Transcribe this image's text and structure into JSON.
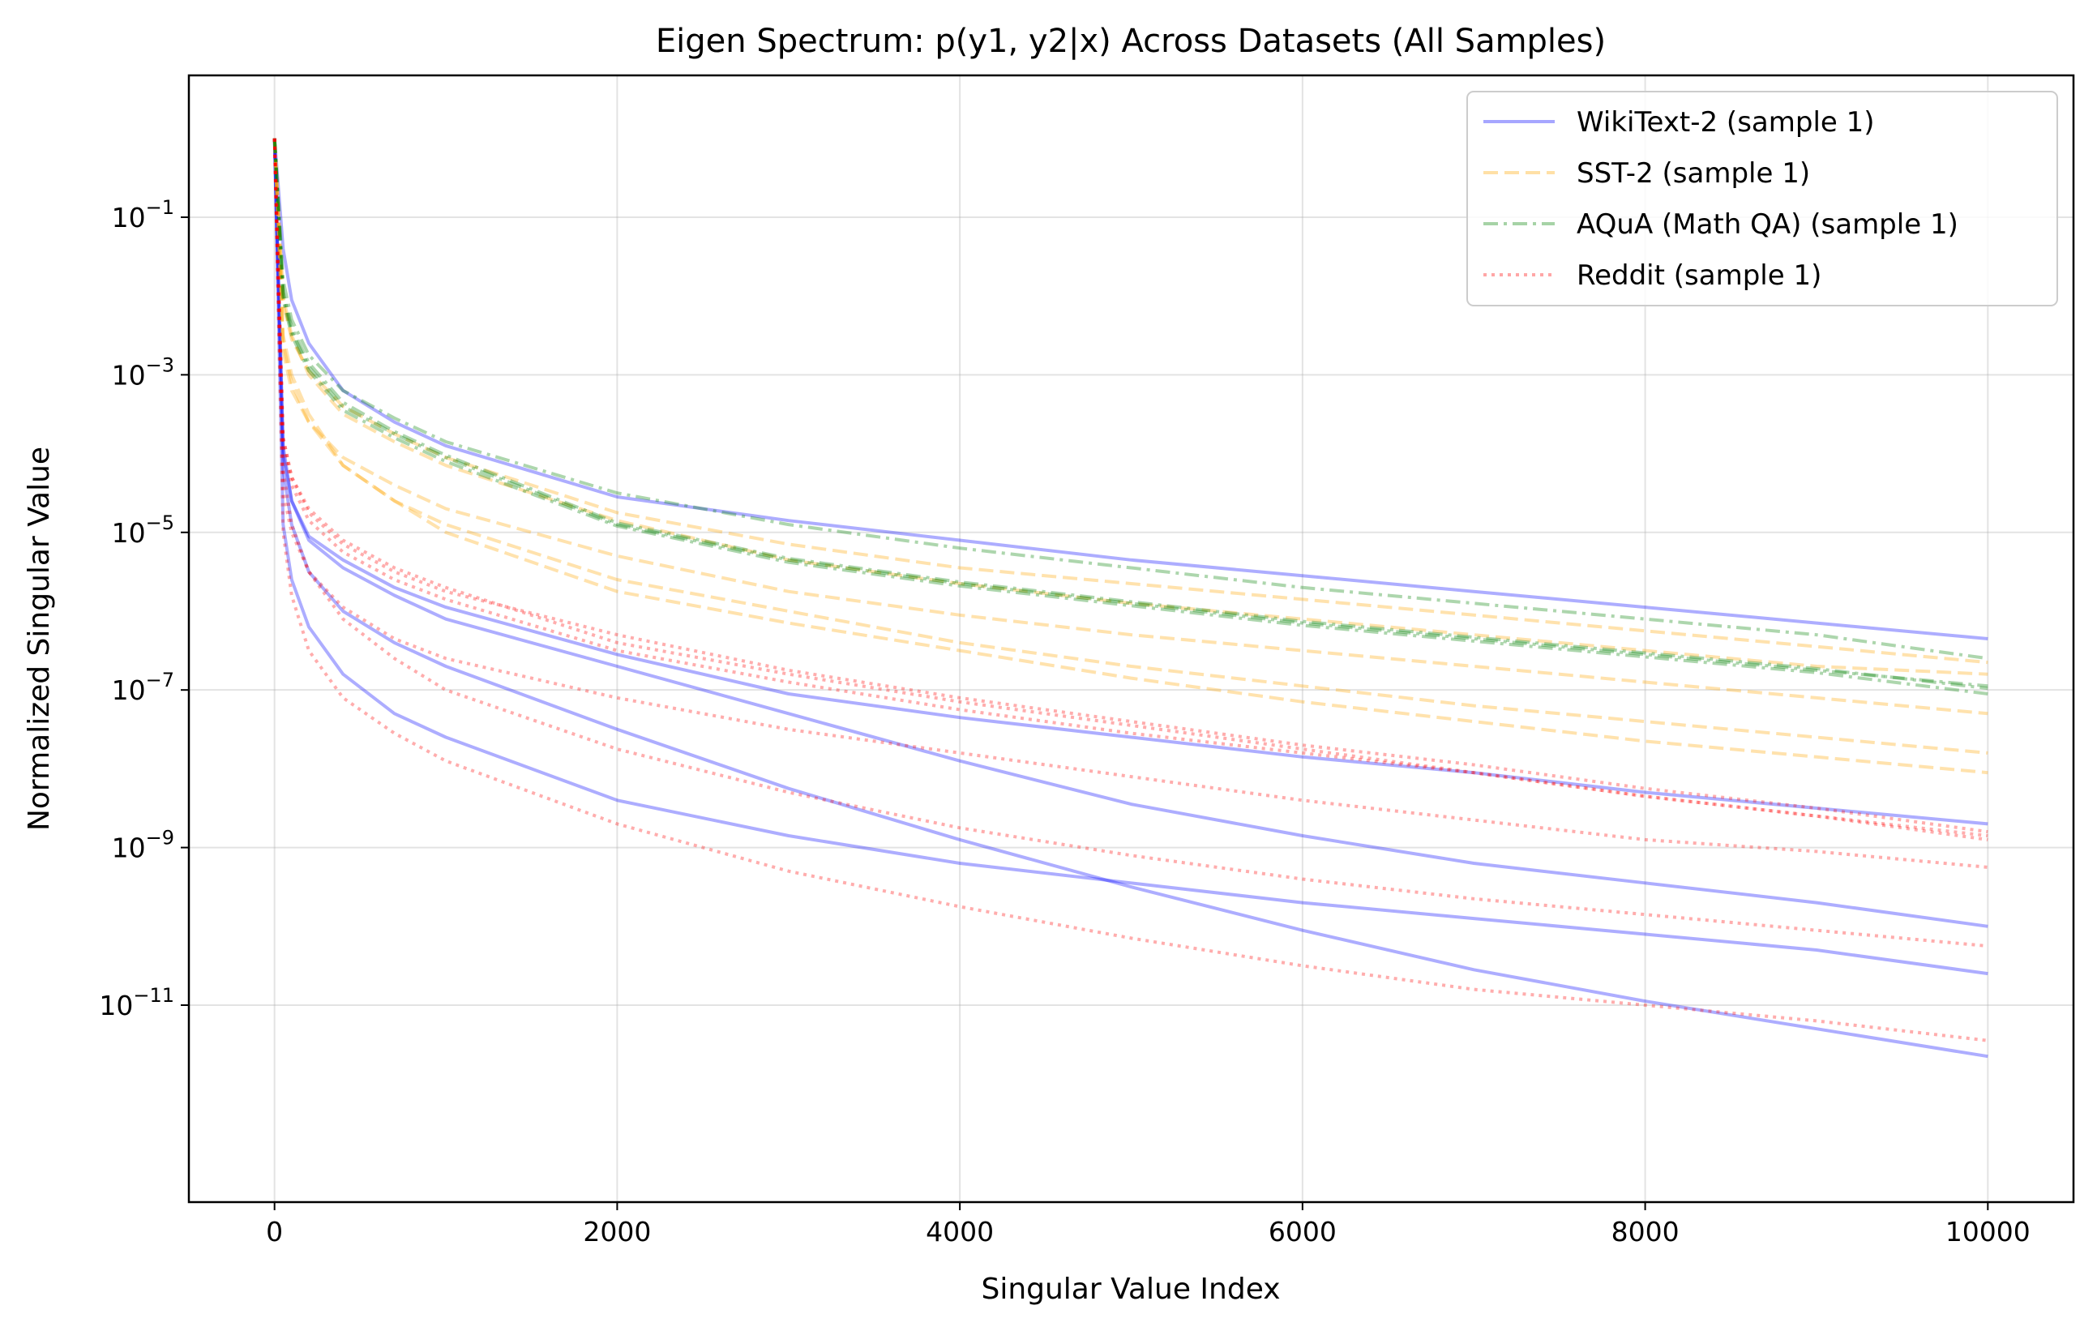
{
  "chart_data": {
    "type": "line",
    "title": "Eigen Spectrum: p(y1, y2|x) Across Datasets (All Samples)",
    "xlabel": "Singular Value Index",
    "ylabel": "Normalized Singular Value",
    "xlim": [
      -500,
      10500
    ],
    "ylim_log10": [
      -13.5,
      0.8
    ],
    "yscale": "log",
    "grid": true,
    "legend_position": "top-right",
    "x_ticks": [
      {
        "value": 0,
        "label": "0"
      },
      {
        "value": 2000,
        "label": "2000"
      },
      {
        "value": 4000,
        "label": "4000"
      },
      {
        "value": 6000,
        "label": "6000"
      },
      {
        "value": 8000,
        "label": "8000"
      },
      {
        "value": 10000,
        "label": "10000"
      }
    ],
    "y_ticks": [
      {
        "exponent": -1,
        "base": "10",
        "sup": "−1"
      },
      {
        "exponent": -3,
        "base": "10",
        "sup": "−3"
      },
      {
        "exponent": -5,
        "base": "10",
        "sup": "−5"
      },
      {
        "exponent": -7,
        "base": "10",
        "sup": "−7"
      },
      {
        "exponent": -9,
        "base": "10",
        "sup": "−9"
      },
      {
        "exponent": -11,
        "base": "10",
        "sup": "−11"
      }
    ],
    "x_sample_points": [
      0,
      50,
      100,
      200,
      400,
      700,
      1000,
      2000,
      3000,
      4000,
      5000,
      6000,
      7000,
      8000,
      9000,
      10000
    ],
    "datasets": [
      {
        "label": "WikiText-2 (sample 1)",
        "color": "#0000ff",
        "dash": "solid",
        "curves_log10": [
          [
            0,
            -1.4,
            -2.05,
            -2.6,
            -3.2,
            -3.6,
            -3.9,
            -4.55,
            -4.85,
            -5.1,
            -5.35,
            -5.55,
            -5.75,
            -5.95,
            -6.15,
            -6.35
          ],
          [
            0,
            -3.9,
            -4.6,
            -5.05,
            -5.35,
            -5.7,
            -5.95,
            -6.55,
            -7.05,
            -7.35,
            -7.6,
            -7.85,
            -8.05,
            -8.3,
            -8.5,
            -8.7
          ],
          [
            0,
            -4.0,
            -4.6,
            -5.1,
            -5.45,
            -5.8,
            -6.1,
            -6.7,
            -7.3,
            -7.9,
            -8.45,
            -8.85,
            -9.2,
            -9.45,
            -9.7,
            -10.0
          ],
          [
            0,
            -4.9,
            -5.6,
            -6.2,
            -6.8,
            -7.3,
            -7.6,
            -8.4,
            -8.85,
            -9.2,
            -9.45,
            -9.7,
            -9.9,
            -10.1,
            -10.3,
            -10.6
          ],
          [
            0,
            -4.2,
            -4.9,
            -5.5,
            -6.0,
            -6.4,
            -6.7,
            -7.5,
            -8.25,
            -8.9,
            -9.5,
            -10.05,
            -10.55,
            -10.95,
            -11.3,
            -11.65
          ]
        ]
      },
      {
        "label": "SST-2 (sample 1)",
        "color": "#ffa500",
        "dash": "dashed",
        "curves_log10": [
          [
            0,
            -2.1,
            -2.55,
            -2.95,
            -3.4,
            -3.75,
            -4.05,
            -4.75,
            -5.15,
            -5.45,
            -5.65,
            -5.85,
            -6.05,
            -6.25,
            -6.45,
            -6.65
          ],
          [
            0,
            -2.0,
            -2.5,
            -3.0,
            -3.5,
            -3.85,
            -4.15,
            -4.85,
            -5.35,
            -5.65,
            -5.9,
            -6.1,
            -6.3,
            -6.5,
            -6.7,
            -6.8
          ],
          [
            0,
            -2.7,
            -3.2,
            -3.6,
            -4.05,
            -4.4,
            -4.7,
            -5.3,
            -5.75,
            -6.05,
            -6.3,
            -6.5,
            -6.7,
            -6.9,
            -7.1,
            -7.3
          ],
          [
            0,
            -2.6,
            -3.1,
            -3.6,
            -4.15,
            -4.6,
            -4.9,
            -5.6,
            -6.0,
            -6.4,
            -6.7,
            -6.95,
            -7.2,
            -7.4,
            -7.6,
            -7.8
          ],
          [
            0,
            -2.5,
            -3.0,
            -3.5,
            -4.15,
            -4.6,
            -5.0,
            -5.75,
            -6.15,
            -6.5,
            -6.85,
            -7.15,
            -7.4,
            -7.65,
            -7.85,
            -8.05
          ]
        ]
      },
      {
        "label": "AQuA (Math QA) (sample 1)",
        "color": "#008000",
        "dash": "dashdot",
        "curves_log10": [
          [
            0,
            -1.8,
            -2.3,
            -2.75,
            -3.2,
            -3.55,
            -3.85,
            -4.5,
            -4.9,
            -5.2,
            -5.45,
            -5.7,
            -5.9,
            -6.1,
            -6.3,
            -6.6
          ],
          [
            0,
            -2.0,
            -2.45,
            -2.9,
            -3.4,
            -3.75,
            -4.05,
            -4.9,
            -5.35,
            -5.65,
            -5.9,
            -6.15,
            -6.35,
            -6.55,
            -6.75,
            -6.95
          ],
          [
            0,
            -1.95,
            -2.4,
            -2.85,
            -3.35,
            -3.72,
            -4.02,
            -4.88,
            -5.33,
            -5.63,
            -5.88,
            -6.13,
            -6.33,
            -6.53,
            -6.73,
            -6.98
          ],
          [
            0,
            -2.05,
            -2.5,
            -2.95,
            -3.45,
            -3.8,
            -4.1,
            -4.92,
            -5.38,
            -5.68,
            -5.93,
            -6.18,
            -6.38,
            -6.58,
            -6.78,
            -7.05
          ]
        ]
      },
      {
        "label": "Reddit (sample 1)",
        "color": "#ff0000",
        "dash": "dotted",
        "curves_log10": [
          [
            0,
            -3.8,
            -4.3,
            -4.75,
            -5.15,
            -5.5,
            -5.75,
            -6.3,
            -6.75,
            -7.1,
            -7.4,
            -7.7,
            -7.95,
            -8.25,
            -8.5,
            -8.8
          ],
          [
            0,
            -3.9,
            -4.4,
            -4.85,
            -5.25,
            -5.6,
            -5.85,
            -6.5,
            -6.9,
            -7.25,
            -7.55,
            -7.8,
            -8.05,
            -8.35,
            -8.6,
            -8.85
          ],
          [
            0,
            -4.5,
            -5.0,
            -5.5,
            -5.95,
            -6.35,
            -6.6,
            -7.1,
            -7.5,
            -7.8,
            -8.1,
            -8.4,
            -8.65,
            -8.9,
            -9.05,
            -9.25
          ],
          [
            0,
            -3.8,
            -4.3,
            -4.7,
            -5.1,
            -5.45,
            -5.7,
            -6.4,
            -6.8,
            -7.15,
            -7.45,
            -7.75,
            -8.05,
            -8.35,
            -8.6,
            -8.9
          ],
          [
            0,
            -4.2,
            -4.9,
            -5.5,
            -6.1,
            -6.6,
            -7.0,
            -7.75,
            -8.3,
            -8.75,
            -9.1,
            -9.4,
            -9.65,
            -9.85,
            -10.05,
            -10.25
          ],
          [
            0,
            -5.0,
            -5.8,
            -6.5,
            -7.1,
            -7.55,
            -7.9,
            -8.7,
            -9.3,
            -9.75,
            -10.15,
            -10.5,
            -10.8,
            -11.0,
            -11.2,
            -11.45
          ]
        ]
      }
    ]
  }
}
